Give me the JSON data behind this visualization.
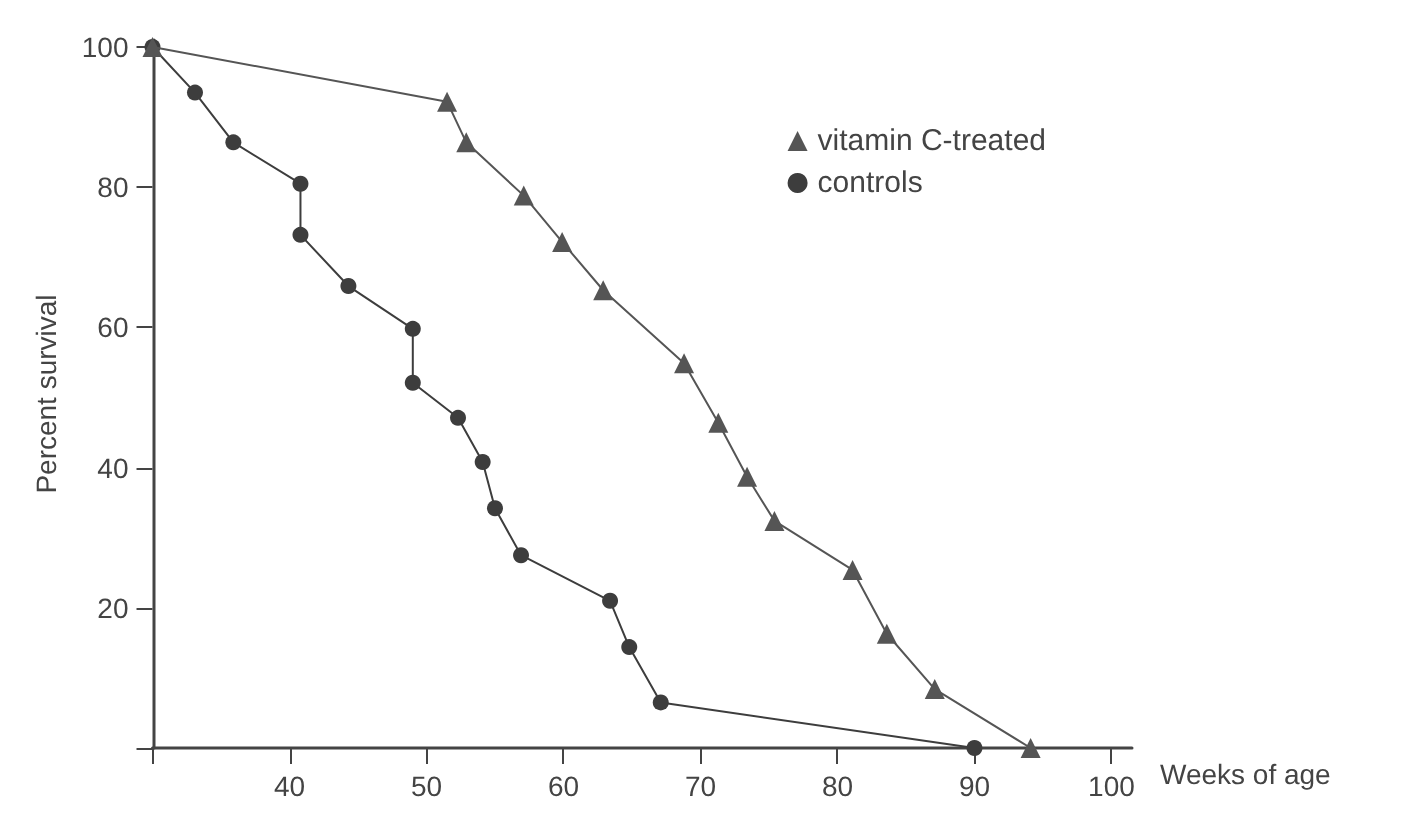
{
  "chart_data": {
    "type": "line",
    "xlabel": "Weeks of age",
    "ylabel": "Percent survival",
    "xlim": [
      30,
      101.5
    ],
    "ylim": [
      0,
      101
    ],
    "xticks": [
      {
        "value": 30,
        "label": null
      },
      40,
      50,
      60,
      70,
      80,
      90,
      100
    ],
    "yticks": [
      {
        "value": 0,
        "label": null
      },
      20,
      40,
      60,
      80,
      100
    ],
    "grid": false,
    "legend": "top right",
    "line_style": "solid",
    "series": [
      {
        "name": "vitamin C-treated",
        "color": "#555555",
        "marker": "triangle",
        "x": [
          30,
          51.5,
          52.9,
          57.1,
          59.9,
          62.9,
          68.8,
          71.3,
          73.4,
          75.4,
          81.1,
          83.6,
          87.1,
          94.1
        ],
        "values": [
          100,
          92.2,
          86.4,
          78.8,
          72.2,
          65.3,
          54.9,
          46.4,
          38.7,
          32.4,
          25.4,
          16.3,
          8.4,
          0
        ]
      },
      {
        "name": "controls",
        "color": "#3d3d3d",
        "marker": "circle",
        "x": [
          30,
          33.1,
          35.9,
          40.8,
          40.8,
          44.3,
          49.0,
          49.0,
          52.3,
          54.1,
          55.0,
          56.9,
          63.4,
          64.8,
          67.1,
          90.0
        ],
        "values": [
          100,
          93.5,
          86.4,
          80.5,
          73.2,
          65.9,
          59.8,
          52.1,
          47.1,
          40.8,
          34.2,
          27.5,
          21.0,
          14.4,
          6.5,
          0
        ]
      }
    ]
  }
}
